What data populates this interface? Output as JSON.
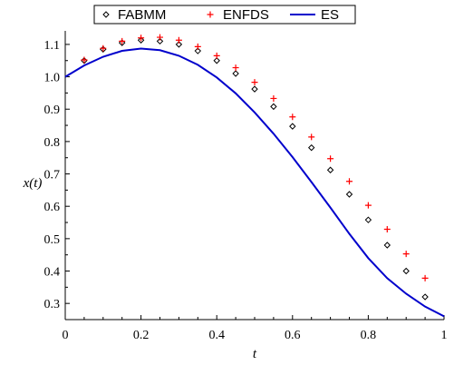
{
  "chart_data": {
    "type": "line",
    "title": "",
    "xlabel": "t",
    "ylabel": "x(t)",
    "xlim": [
      0,
      1
    ],
    "ylim": [
      0.25,
      1.125
    ],
    "x_ticks": [
      "0",
      "0.2",
      "0.4",
      "0.6",
      "0.8",
      "1"
    ],
    "x_tick_values": [
      0,
      0.2,
      0.4,
      0.6,
      0.8,
      1.0
    ],
    "y_ticks": [
      "0.3",
      "0.4",
      "0.5",
      "0.6",
      "0.7",
      "0.8",
      "0.9",
      "1.0",
      "1.1"
    ],
    "y_tick_values": [
      0.3,
      0.4,
      0.5,
      0.6,
      0.7,
      0.8,
      0.9,
      1.0,
      1.1
    ],
    "grid": false,
    "legend": {
      "placement": "top-center",
      "boxed": true
    },
    "series": [
      {
        "name": "FABMM",
        "kind": "scatter",
        "marker": "diamond",
        "color": "#000000",
        "x": [
          0.05,
          0.1,
          0.15,
          0.2,
          0.25,
          0.3,
          0.35,
          0.4,
          0.45,
          0.5,
          0.55,
          0.6,
          0.65,
          0.7,
          0.75,
          0.8,
          0.85,
          0.9,
          0.95
        ],
        "y": [
          1.05,
          1.085,
          1.105,
          1.113,
          1.11,
          1.1,
          1.08,
          1.05,
          1.01,
          0.962,
          0.908,
          0.847,
          0.781,
          0.712,
          0.637,
          0.558,
          0.48,
          0.4,
          0.32
        ]
      },
      {
        "name": "ENFDS",
        "kind": "scatter",
        "marker": "plus",
        "color": "#ff0000",
        "x": [
          0.05,
          0.1,
          0.15,
          0.2,
          0.25,
          0.3,
          0.35,
          0.4,
          0.45,
          0.5,
          0.55,
          0.6,
          0.65,
          0.7,
          0.75,
          0.8,
          0.85,
          0.9,
          0.95
        ],
        "y": [
          1.052,
          1.088,
          1.11,
          1.12,
          1.122,
          1.113,
          1.093,
          1.065,
          1.028,
          0.983,
          0.933,
          0.876,
          0.814,
          0.747,
          0.677,
          0.603,
          0.529,
          0.453,
          0.378
        ]
      },
      {
        "name": "ES",
        "kind": "line",
        "color": "#0000cc",
        "x": [
          0,
          0.05,
          0.1,
          0.15,
          0.2,
          0.25,
          0.3,
          0.35,
          0.4,
          0.45,
          0.5,
          0.55,
          0.6,
          0.65,
          0.7,
          0.75,
          0.8,
          0.85,
          0.9,
          0.95,
          1.0
        ],
        "y": [
          1.0,
          1.035,
          1.062,
          1.08,
          1.087,
          1.082,
          1.065,
          1.037,
          0.998,
          0.949,
          0.89,
          0.824,
          0.752,
          0.675,
          0.596,
          0.515,
          0.44,
          0.378,
          0.33,
          0.29,
          0.26
        ]
      }
    ]
  }
}
